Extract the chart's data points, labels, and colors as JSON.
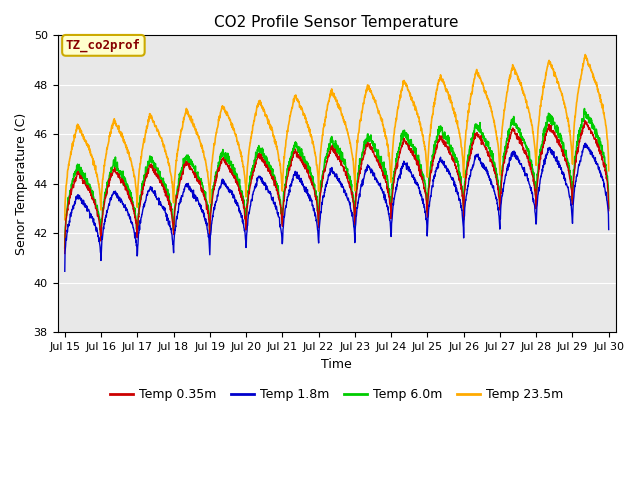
{
  "title": "CO2 Profile Sensor Temperature",
  "ylabel": "Senor Temperature (C)",
  "xlabel": "Time",
  "ylim": [
    38,
    50
  ],
  "series_labels": [
    "Temp 0.35m",
    "Temp 1.8m",
    "Temp 6.0m",
    "Temp 23.5m"
  ],
  "series_colors": [
    "#cc0000",
    "#0000cc",
    "#00cc00",
    "#ffaa00"
  ],
  "series_linewidths": [
    1.0,
    1.0,
    1.2,
    1.2
  ],
  "annotation_text": "TZ_co2prof",
  "annotation_color": "#880000",
  "annotation_bg": "#ffffcc",
  "annotation_border": "#ccaa00",
  "plot_bg": "#e8e8e8",
  "title_fontsize": 11,
  "label_fontsize": 9,
  "tick_fontsize": 8,
  "legend_fontsize": 9,
  "n_points": 2000,
  "yticks": [
    38,
    40,
    42,
    44,
    46,
    48,
    50
  ],
  "xtick_days": [
    15,
    16,
    17,
    18,
    19,
    20,
    21,
    22,
    23,
    24,
    25,
    26,
    27,
    28,
    29,
    30
  ]
}
